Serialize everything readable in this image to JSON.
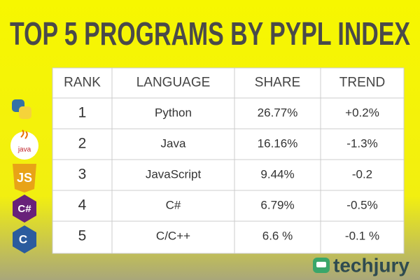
{
  "header": {
    "title": "TOP 5 PROGRAMS BY PYPL INDEX"
  },
  "table": {
    "columns": [
      "RANK",
      "LANGUAGE",
      "SHARE",
      "TREND"
    ],
    "rows": [
      [
        "1",
        "Python",
        "26.77%",
        "+0.2%"
      ],
      [
        "2",
        "Java",
        "16.16%",
        "-1.3%"
      ],
      [
        "3",
        "JavaScript",
        "9.44%",
        "-0.2"
      ],
      [
        "4",
        "C#",
        "6.79%",
        "-0.5%"
      ],
      [
        "5",
        "C/C++",
        "6.6 %",
        "-0.1 %"
      ]
    ]
  },
  "icons": {
    "java": "java",
    "javascript": "JS",
    "csharp": "C#",
    "cpp": "C"
  },
  "brand": "techjury"
}
